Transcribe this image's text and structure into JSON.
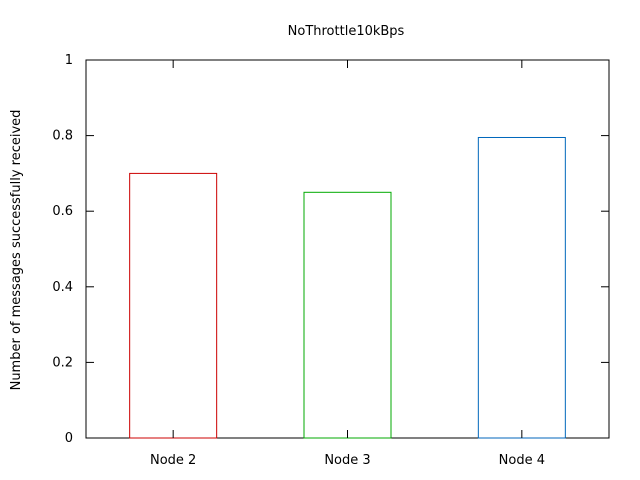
{
  "chart_data": {
    "type": "bar",
    "title": "NoThrottle10kBps",
    "xlabel": "",
    "ylabel": "Number of messages successfully received",
    "categories": [
      "Node 2",
      "Node 3",
      "Node 4"
    ],
    "values": [
      0.7,
      0.65,
      0.795
    ],
    "colors": [
      "#cc0000",
      "#00aa00",
      "#0066bb"
    ],
    "ylim": [
      0,
      1
    ],
    "yticks": [
      "0",
      "0.2",
      "0.4",
      "0.6",
      "0.8",
      "1"
    ],
    "grid": false,
    "bar_style": "outline"
  }
}
